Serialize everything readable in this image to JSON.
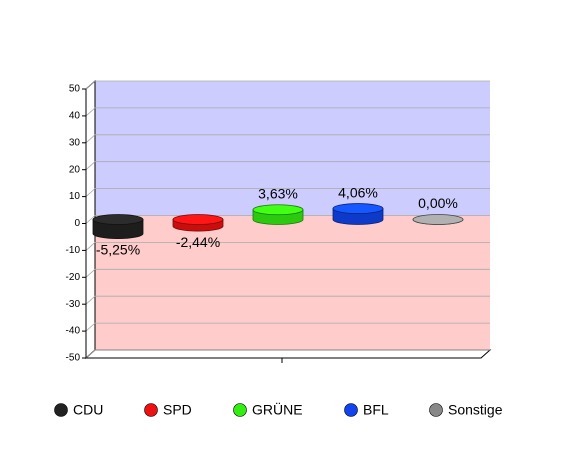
{
  "chart_data": {
    "type": "cylinder-bar",
    "categories": [
      null
    ],
    "series": [
      {
        "name": "CDU",
        "color": "#222222",
        "values": [
          -5.25
        ],
        "value_labels": [
          "-5,25%"
        ]
      },
      {
        "name": "SPD",
        "color": "#ee1111",
        "values": [
          -2.44
        ],
        "value_labels": [
          "-2,44%"
        ]
      },
      {
        "name": "GRÜNE",
        "color": "#33ee11",
        "values": [
          3.63
        ],
        "value_labels": [
          "3,63%"
        ]
      },
      {
        "name": "BFL",
        "color": "#1144ee",
        "values": [
          4.06
        ],
        "value_labels": [
          "4,06%"
        ]
      },
      {
        "name": "Sonstige",
        "color": "#888888",
        "values": [
          0.0
        ],
        "value_labels": [
          "0,00%"
        ]
      }
    ],
    "ylim": [
      -50,
      50
    ],
    "yticks": [
      -50,
      -40,
      -30,
      -20,
      -10,
      0,
      10,
      20,
      30,
      40,
      50
    ],
    "grid": true,
    "legend": "bottom"
  }
}
